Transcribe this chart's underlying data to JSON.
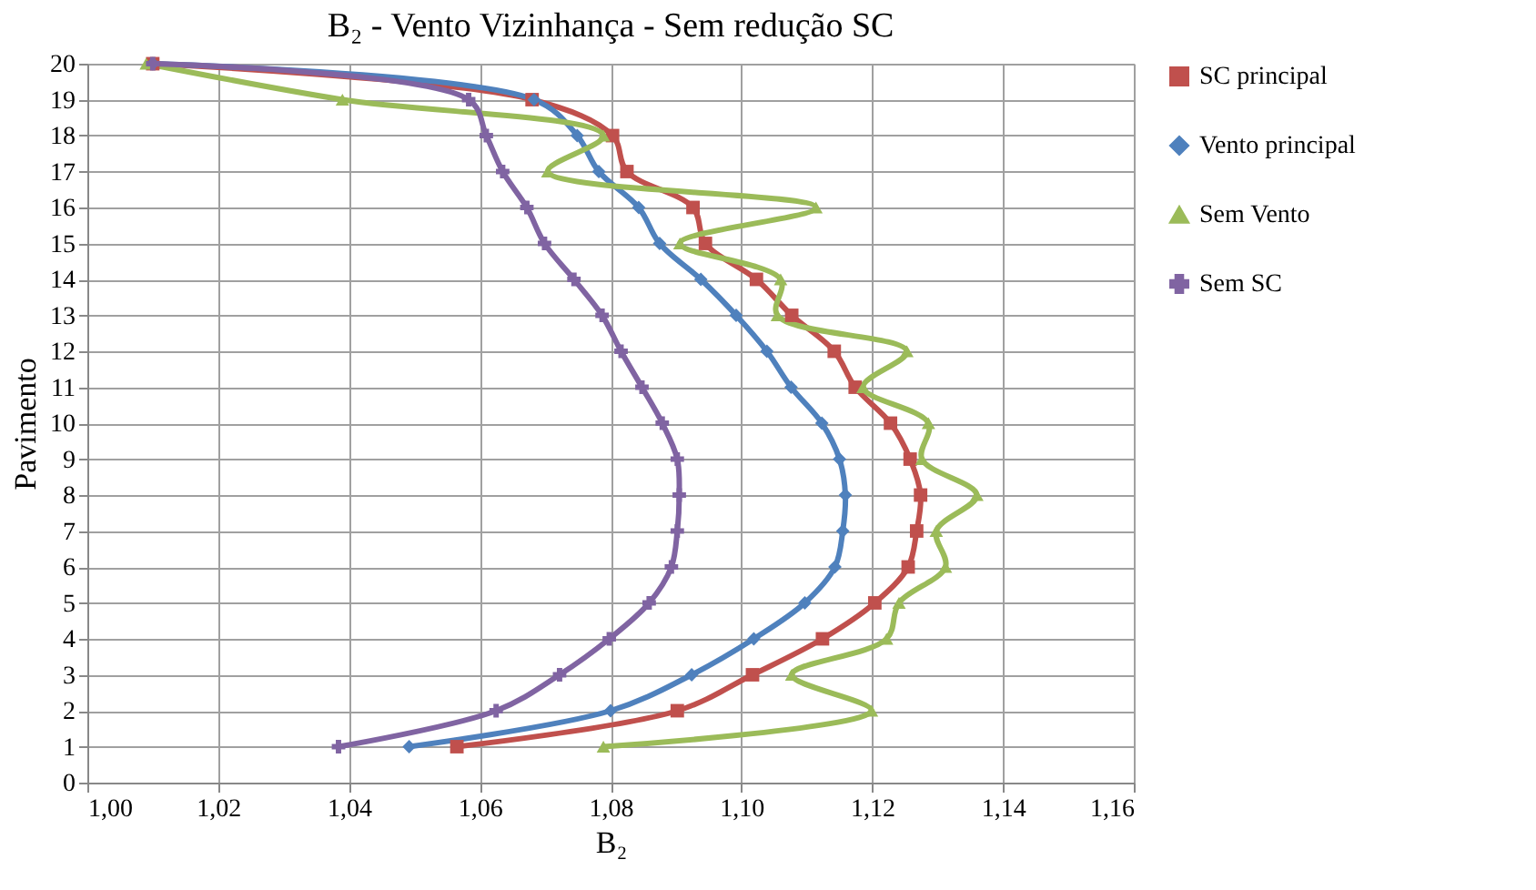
{
  "chart_data": {
    "type": "line",
    "title": "B₂ - Vento Vizinhança - Sem redução SC",
    "xlabel": "B₂",
    "ylabel": "Pavimento",
    "xlim": [
      1.0,
      1.16
    ],
    "xticks": [
      {
        "value": 1.0,
        "label": "1,00"
      },
      {
        "value": 1.02,
        "label": "1,02"
      },
      {
        "value": 1.04,
        "label": "1,04"
      },
      {
        "value": 1.06,
        "label": "1,06"
      },
      {
        "value": 1.08,
        "label": "1,08"
      },
      {
        "value": 1.1,
        "label": "1,10"
      },
      {
        "value": 1.12,
        "label": "1,12"
      },
      {
        "value": 1.14,
        "label": "1,14"
      },
      {
        "value": 1.16,
        "label": "1,16"
      }
    ],
    "ylim": [
      0,
      20
    ],
    "yticks": [
      0,
      1,
      2,
      3,
      4,
      5,
      6,
      7,
      8,
      9,
      10,
      11,
      12,
      13,
      14,
      15,
      16,
      17,
      18,
      19,
      20
    ],
    "grid": true,
    "legend": "right",
    "line_style": "solid",
    "series": [
      {
        "name": "SC principal",
        "color": "#c0504d",
        "marker": "square",
        "x": [
          1.0565,
          1.0902,
          1.1017,
          1.1124,
          1.1204,
          1.1255,
          1.1268,
          1.1274,
          1.1258,
          1.1228,
          1.1174,
          1.1142,
          1.1077,
          1.1023,
          1.0945,
          1.0926,
          1.0825,
          1.0803,
          1.068,
          1.01
        ],
        "values": [
          1,
          2,
          3,
          4,
          5,
          6,
          7,
          8,
          9,
          10,
          11,
          12,
          13,
          14,
          15,
          16,
          17,
          18,
          19,
          20
        ]
      },
      {
        "name": "Vento principal",
        "color": "#4f81bd",
        "marker": "diamond",
        "x": [
          1.0492,
          1.08,
          1.0924,
          1.1019,
          1.1097,
          1.1143,
          1.1155,
          1.1159,
          1.115,
          1.1123,
          1.1076,
          1.1039,
          1.0992,
          1.0938,
          1.0875,
          1.0843,
          1.0782,
          1.0749,
          1.0683,
          1.01
        ],
        "values": [
          1,
          2,
          3,
          4,
          5,
          6,
          7,
          8,
          9,
          10,
          11,
          12,
          13,
          14,
          15,
          16,
          17,
          18,
          19,
          20
        ]
      },
      {
        "name": "Sem Vento",
        "color": "#9bbb59",
        "marker": "triangle",
        "x": [
          1.0789,
          1.1199,
          1.1077,
          1.1222,
          1.1241,
          1.1312,
          1.1298,
          1.136,
          1.1276,
          1.1286,
          1.1186,
          1.1253,
          1.1055,
          1.106,
          1.0906,
          1.1114,
          1.0704,
          1.0789,
          1.039,
          1.009
        ],
        "values": [
          1,
          2,
          3,
          4,
          5,
          6,
          7,
          8,
          9,
          10,
          11,
          12,
          13,
          14,
          15,
          16,
          17,
          18,
          19,
          20
        ]
      },
      {
        "name": "Sem SC",
        "color": "#8064a2",
        "marker": "cross",
        "x": [
          1.0384,
          1.0625,
          1.0722,
          1.0798,
          1.0859,
          1.0893,
          1.0902,
          1.0905,
          1.0902,
          1.0879,
          1.0848,
          1.0816,
          1.0787,
          1.0744,
          1.0699,
          1.0672,
          1.0635,
          1.061,
          1.0583,
          1.01
        ],
        "values": [
          1,
          2,
          3,
          4,
          5,
          6,
          7,
          8,
          9,
          10,
          11,
          12,
          13,
          14,
          15,
          16,
          17,
          18,
          19,
          20
        ]
      }
    ]
  }
}
